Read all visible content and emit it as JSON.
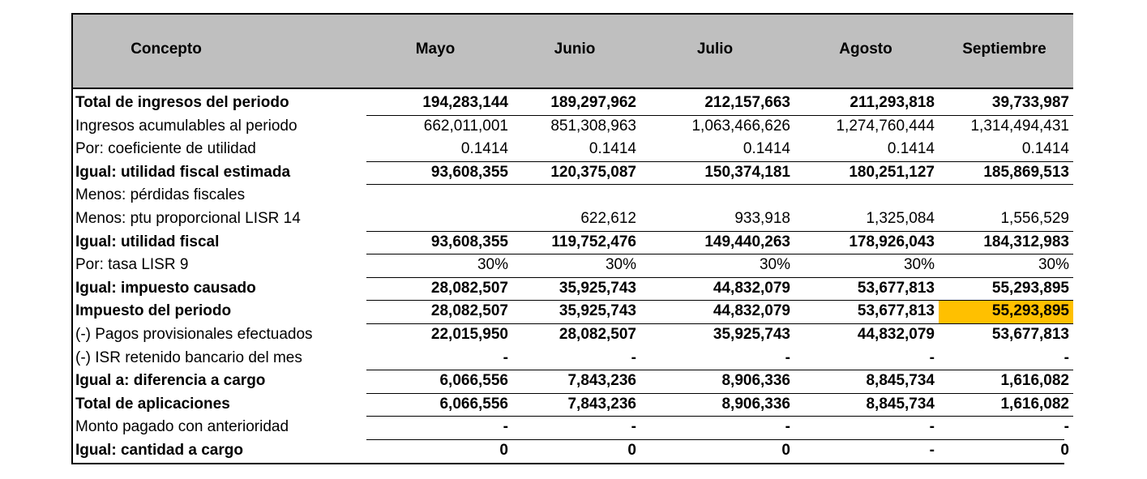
{
  "table": {
    "header": [
      "Concepto",
      "Mayo",
      "Junio",
      "Julio",
      "Agosto",
      "Septiembre"
    ],
    "rows": [
      [
        "Total de ingresos del periodo",
        "194,283,144",
        "189,297,962",
        "212,157,663",
        "211,293,818",
        "39,733,987"
      ],
      [
        "Ingresos acumulables al periodo",
        "662,011,001",
        "851,308,963",
        "1,063,466,626",
        "1,274,760,444",
        "1,314,494,431"
      ],
      [
        "Por: coeficiente de utilidad",
        "0.1414",
        "0.1414",
        "0.1414",
        "0.1414",
        "0.1414"
      ],
      [
        "Igual: utilidad fiscal estimada",
        "93,608,355",
        "120,375,087",
        "150,374,181",
        "180,251,127",
        "185,869,513"
      ],
      [
        "Menos: pérdidas fiscales",
        null,
        null,
        null,
        null,
        null
      ],
      [
        "Menos: ptu proporcional LISR 14",
        null,
        "622,612",
        "933,918",
        "1,325,084",
        "1,556,529"
      ],
      [
        "Igual: utilidad fiscal",
        "93,608,355",
        "119,752,476",
        "149,440,263",
        "178,926,043",
        "184,312,983"
      ],
      [
        "Por: tasa LISR 9",
        "30%",
        "30%",
        "30%",
        "30%",
        "30%"
      ],
      [
        "Igual: impuesto causado",
        "28,082,507",
        "35,925,743",
        "44,832,079",
        "53,677,813",
        "55,293,895"
      ],
      [
        "Impuesto del periodo",
        "28,082,507",
        "35,925,743",
        "44,832,079",
        "53,677,813",
        "55,293,895"
      ],
      [
        "(-) Pagos provisionales efectuados",
        "22,015,950",
        "28,082,507",
        "35,925,743",
        "44,832,079",
        "53,677,813"
      ],
      [
        "(-) ISR retenido bancario del mes",
        "-",
        "-",
        "-",
        "-",
        "-"
      ],
      [
        "Igual a: diferencia a cargo",
        "6,066,556",
        "7,843,236",
        "8,906,336",
        "8,845,734",
        "1,616,082"
      ],
      [
        "Total de aplicaciones",
        "6,066,556",
        "7,843,236",
        "8,906,336",
        "8,845,734",
        "1,616,082"
      ],
      [
        "Monto pagado con anterioridad",
        "-",
        "-",
        "-",
        "-",
        "-"
      ],
      [
        "Igual: cantidad a cargo",
        "0",
        "0",
        "0",
        "-",
        "0"
      ]
    ]
  }
}
